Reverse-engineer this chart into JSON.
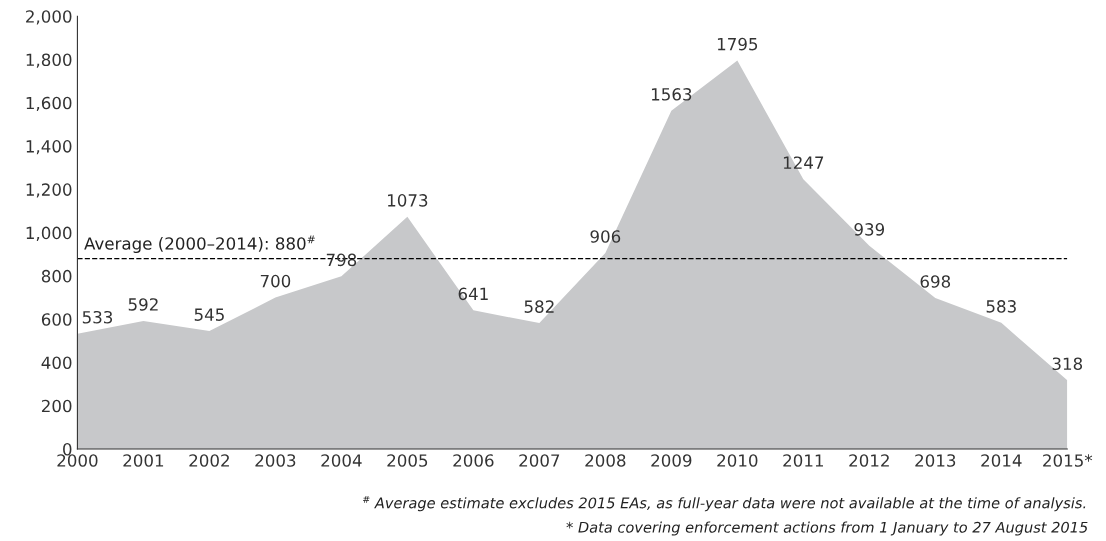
{
  "chart_data": {
    "type": "area",
    "categories": [
      "2000",
      "2001",
      "2002",
      "2003",
      "2004",
      "2005",
      "2006",
      "2007",
      "2008",
      "2009",
      "2010",
      "2011",
      "2012",
      "2013",
      "2014",
      "2015*"
    ],
    "values": [
      533,
      592,
      545,
      700,
      798,
      1073,
      641,
      582,
      906,
      1563,
      1795,
      1247,
      939,
      698,
      583,
      318
    ],
    "color": "#c7c8ca",
    "data_labels": true,
    "ylim": [
      0,
      2000
    ],
    "yticks": [
      0,
      {
        "value": 200,
        "label": "200"
      },
      {
        "value": 400,
        "label": "400"
      },
      {
        "value": 600,
        "label": "600"
      },
      {
        "value": 800,
        "label": "800"
      },
      {
        "value": 1000,
        "label": "1,000"
      },
      {
        "value": 1200,
        "label": "1,200"
      },
      {
        "value": 1400,
        "label": "1,400"
      },
      {
        "value": 1600,
        "label": "1,600"
      },
      {
        "value": 1800,
        "label": "1,800"
      },
      {
        "value": 2000,
        "label": "2,000"
      }
    ],
    "ref_lines": [
      {
        "axis": "y",
        "value": 880,
        "label": "Average (2000–2014): 880$^{#}$",
        "color": "#000000",
        "line_style": "dashed"
      }
    ],
    "annotations": [
      "$^{#}$ Average estimate excludes 2015 EAs, as full-year data were not available at the time of analysis.",
      "* Data covering enforcement actions from 1 January to 27 August 2015"
    ],
    "grid": false
  }
}
